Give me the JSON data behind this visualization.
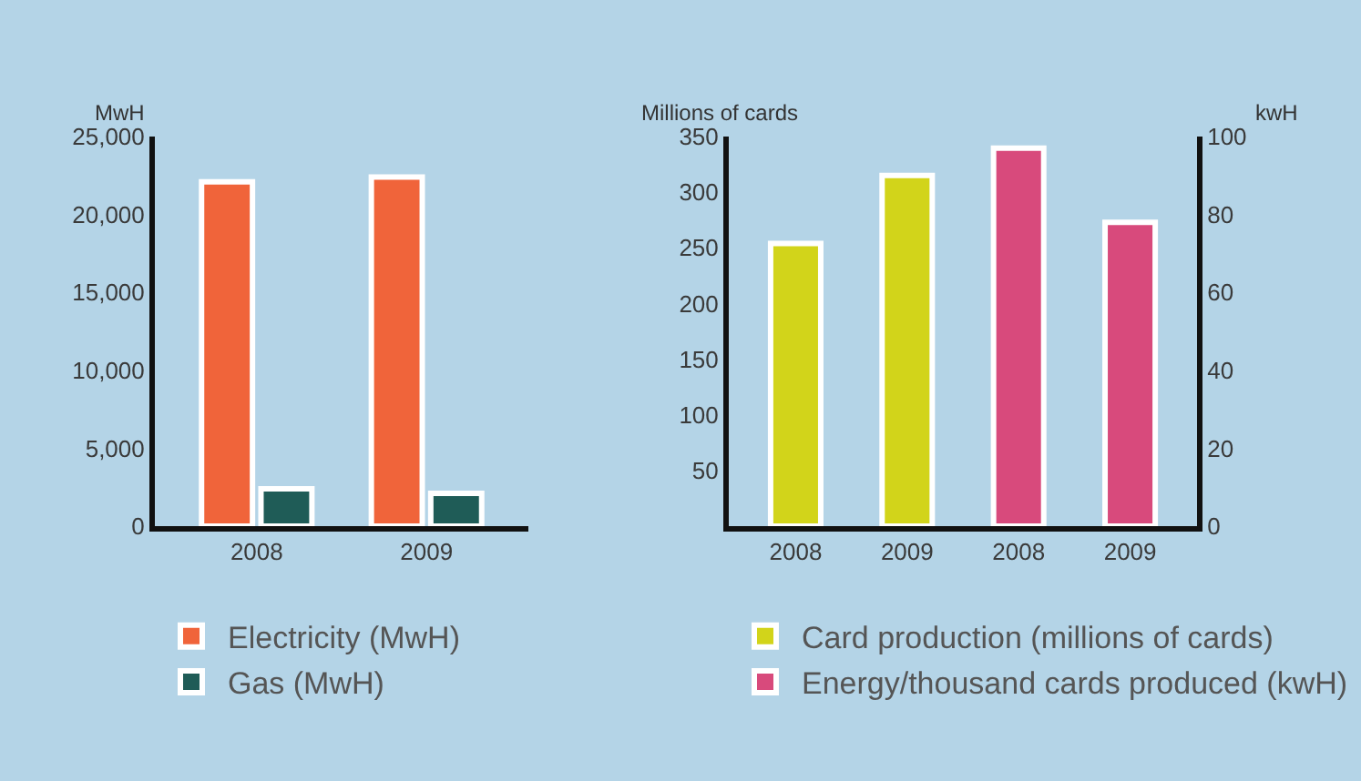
{
  "chart_data": [
    {
      "type": "bar",
      "ylabel": "MwH",
      "categories": [
        "2008",
        "2009"
      ],
      "series": [
        {
          "name": "Electricity (MwH)",
          "color": "#f0643a",
          "values": [
            22100,
            22400
          ]
        },
        {
          "name": "Gas (MwH)",
          "color": "#1f5c57",
          "values": [
            2400,
            2100
          ]
        }
      ],
      "ylim": [
        0,
        25000
      ],
      "yticks": [
        {
          "value": 0,
          "label": "0"
        },
        {
          "value": 5000,
          "label": "5,000"
        },
        {
          "value": 10000,
          "label": "10,000"
        },
        {
          "value": 15000,
          "label": "15,000"
        },
        {
          "value": 20000,
          "label": "20,000"
        },
        {
          "value": 25000,
          "label": "25,000"
        }
      ],
      "grid": false,
      "legend": "bottom"
    },
    {
      "type": "bar",
      "ylabel": "Millions of cards",
      "y2label": "kwH",
      "categories": [
        "2008",
        "2009",
        "2008",
        "2009"
      ],
      "series": [
        {
          "name": "Card production (millions of cards)",
          "color": "#d2d41a",
          "values": [
            254,
            315,
            null,
            null
          ]
        },
        {
          "name": "Energy/thousand cards produced (kwH)",
          "color": "#d84a7c",
          "axis": "y2",
          "values": [
            null,
            null,
            97,
            78
          ]
        }
      ],
      "ylim": [
        0,
        350
      ],
      "yticks": [
        50,
        100,
        150,
        200,
        250,
        300,
        350
      ],
      "y2lim": [
        0,
        100
      ],
      "y2ticks": [
        0,
        20,
        40,
        60,
        80,
        100
      ],
      "grid": false,
      "legend": "bottom"
    }
  ]
}
